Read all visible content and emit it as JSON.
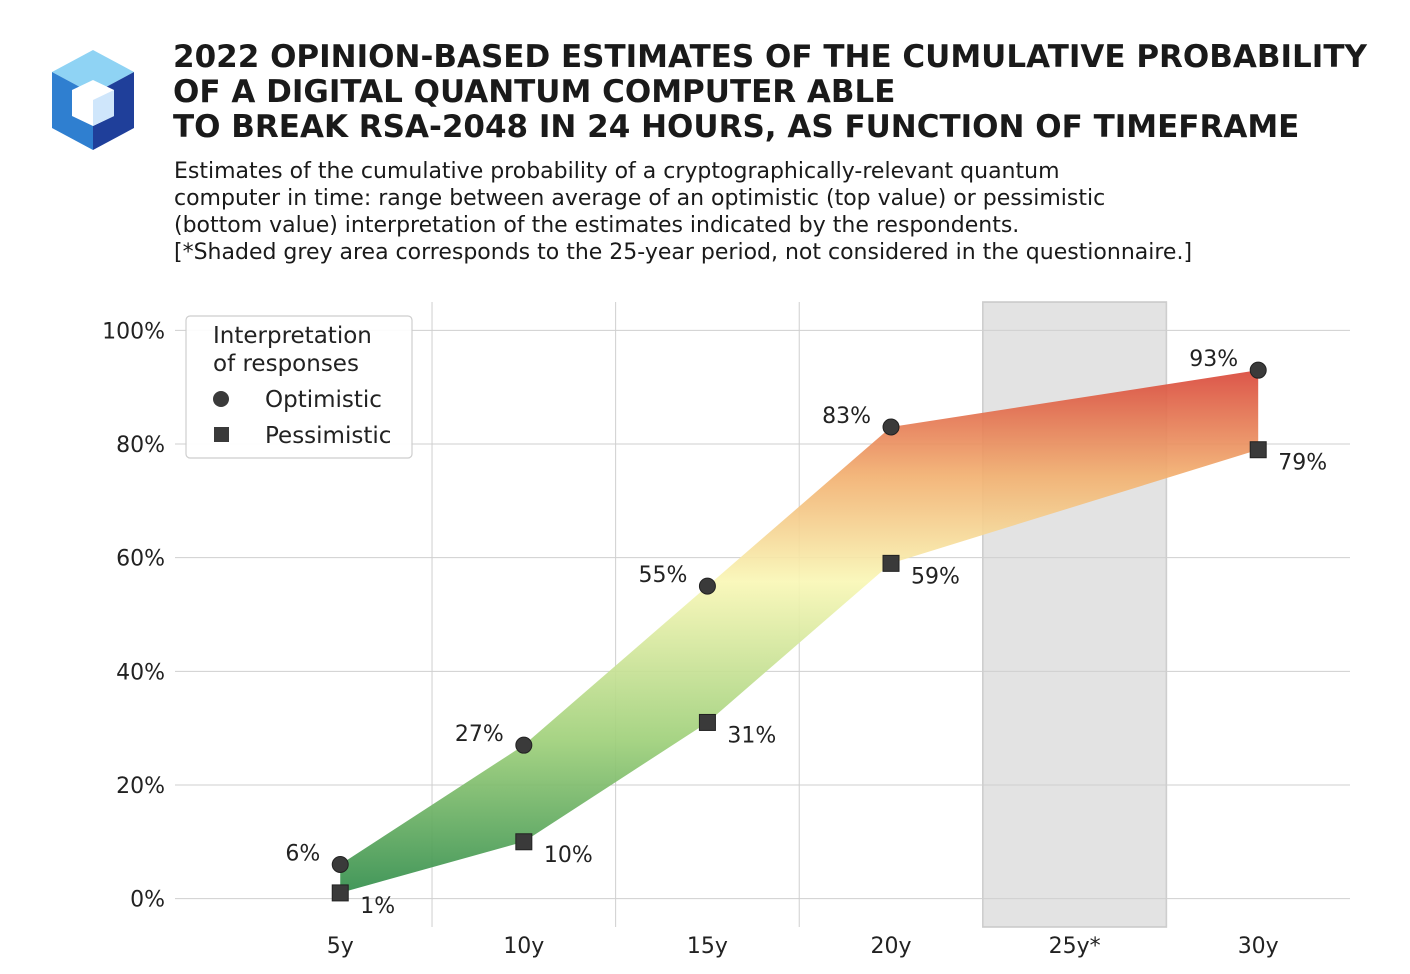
{
  "logo": {
    "icon": "cube-logo-icon",
    "colors": {
      "top": "#8fd3f4",
      "left": "#2f7fd0",
      "right": "#1f3f9a",
      "inner": "#ffffff"
    }
  },
  "header": {
    "title_lines": [
      "2022 OPINION-BASED ESTIMATES OF THE CUMULATIVE PROBABILITY",
      "OF A DIGITAL QUANTUM COMPUTER ABLE",
      "TO BREAK RSA-2048 IN 24 HOURS, AS FUNCTION OF TIMEFRAME"
    ],
    "subtitle_lines": [
      "Estimates of the cumulative probability of a cryptographically-relevant quantum",
      "computer in time: range between average of an optimistic (top value) or pessimistic",
      "(bottom value) interpretation of the estimates indicated by the respondents.",
      "[*Shaded grey area corresponds to the 25-year period, not considered in the questionnaire.]"
    ]
  },
  "chart_data": {
    "type": "line",
    "title": "2022 OPINION-BASED ESTIMATES OF THE CUMULATIVE PROBABILITY OF A DIGITAL QUANTUM COMPUTER ABLE TO BREAK RSA-2048 IN 24 HOURS, AS FUNCTION OF TIMEFRAME",
    "categories": [
      "5y",
      "10y",
      "15y",
      "20y",
      "25y*",
      "30y"
    ],
    "x_positions": [
      5,
      10,
      15,
      20,
      25,
      30
    ],
    "xlim": [
      0.5,
      32.5
    ],
    "ylim": [
      -5,
      105
    ],
    "y_ticks": [
      0,
      20,
      40,
      60,
      80,
      100
    ],
    "y_tick_labels": [
      "0%",
      "20%",
      "40%",
      "60%",
      "80%",
      "100%"
    ],
    "grid": true,
    "shaded_region": {
      "x_range": [
        22.5,
        27.5
      ],
      "color": "#e3e3e3"
    },
    "legend": {
      "title_lines": [
        "Interpretation",
        "of responses"
      ],
      "position": "top-left"
    },
    "series": [
      {
        "name": "Optimistic",
        "marker": "circle",
        "x": [
          5,
          10,
          15,
          20,
          30
        ],
        "values": [
          6,
          27,
          55,
          83,
          93
        ],
        "labels": [
          "6%",
          "27%",
          "55%",
          "83%",
          "93%"
        ]
      },
      {
        "name": "Pessimistic",
        "marker": "square",
        "x": [
          5,
          10,
          15,
          20,
          30
        ],
        "values": [
          1,
          10,
          31,
          59,
          79
        ],
        "labels": [
          "1%",
          "10%",
          "31%",
          "59%",
          "79%"
        ]
      }
    ],
    "band_gradient_colors": [
      "#2e8b4a",
      "#9fd07a",
      "#f9f7b6",
      "#f2b070",
      "#d9473a"
    ],
    "marker_color": "#3a3a3a"
  }
}
